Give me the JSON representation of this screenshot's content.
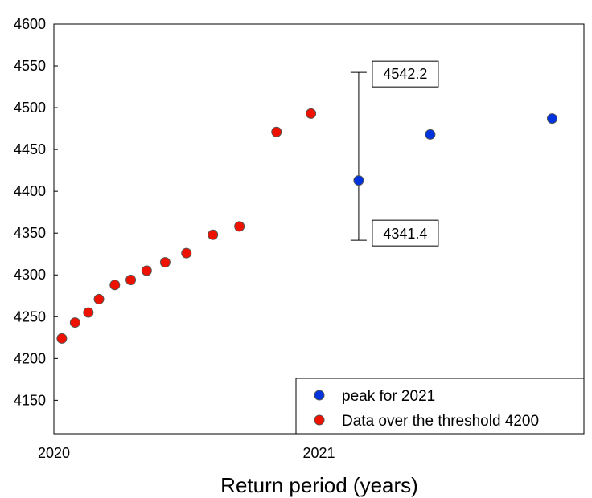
{
  "chart_data": {
    "type": "scatter",
    "title": "",
    "xlabel": "Return period (years)",
    "ylabel": "",
    "xlim": [
      2020,
      2022
    ],
    "ylim": [
      4110,
      4600
    ],
    "x_ticks": [
      {
        "value": 2020,
        "label": "2020"
      },
      {
        "value": 2021,
        "label": "2021"
      }
    ],
    "y_ticks": [
      4150,
      4200,
      4250,
      4300,
      4350,
      4400,
      4450,
      4500,
      4550,
      4600
    ],
    "y_tick_labels": [
      "4150",
      "4200",
      "4250",
      "4300",
      "4350",
      "4400",
      "4450",
      "4500",
      "4550",
      "4600"
    ],
    "reference_line_x": 2021,
    "grid": false,
    "legend_position": "bottom-right",
    "series": [
      {
        "name": "peak for 2021",
        "color": "#0033dd",
        "x": [
          2021.15,
          2021.42,
          2021.88
        ],
        "y": [
          4413,
          4468,
          4487
        ]
      },
      {
        "name": "Data over the threshold 4200",
        "color": "#ee1100",
        "x": [
          2020.03,
          2020.08,
          2020.13,
          2020.17,
          2020.23,
          2020.29,
          2020.35,
          2020.42,
          2020.5,
          2020.6,
          2020.7,
          2020.84,
          2020.97
        ],
        "y": [
          4224,
          4243,
          4255,
          4271,
          4288,
          4294,
          4305,
          4315,
          4326,
          4348,
          4358,
          4471,
          4493
        ]
      }
    ],
    "error_bar": {
      "x": 2021.15,
      "low": 4341.4,
      "high": 4542.2,
      "low_label": "4341.4",
      "high_label": "4542.2"
    }
  }
}
